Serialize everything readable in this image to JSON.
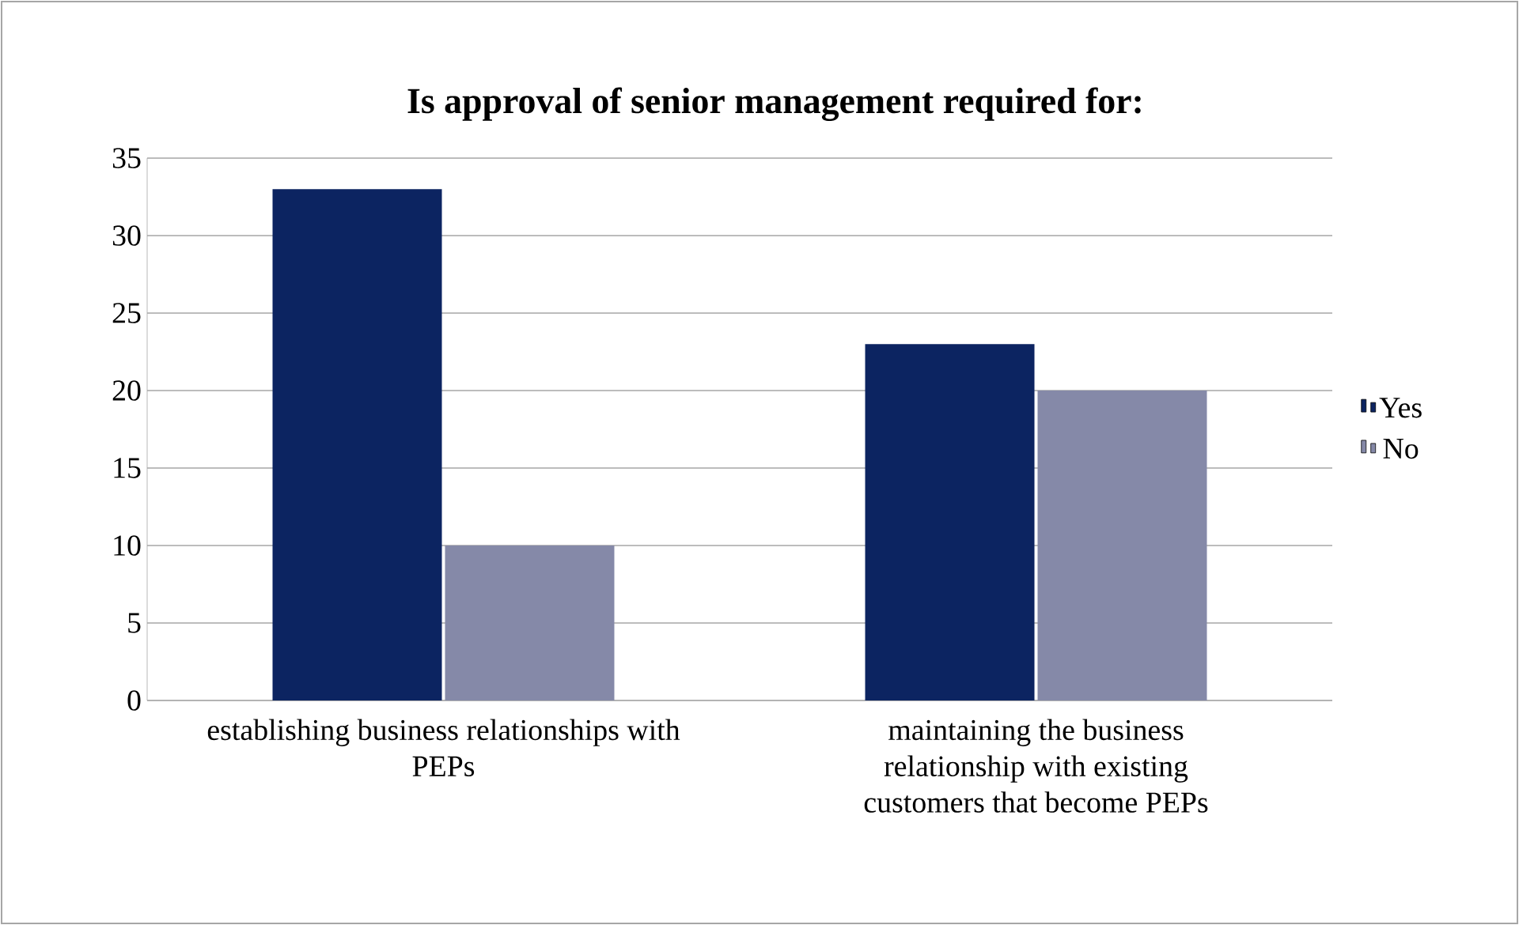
{
  "chart_data": {
    "type": "bar",
    "title": "Is approval of senior management required for:",
    "categories": [
      "establishing business relationships with PEPs",
      "maintaining the business relationship with existing customers that become PEPs"
    ],
    "series": [
      {
        "name": "Yes",
        "color": "#0c2461",
        "values": [
          33,
          23
        ]
      },
      {
        "name": "No",
        "color": "#8589a8",
        "values": [
          10,
          20
        ]
      }
    ],
    "ylim": [
      0,
      35
    ],
    "yticks": [
      0,
      5,
      10,
      15,
      20,
      25,
      30,
      35
    ],
    "grid": "y",
    "legend": "right"
  }
}
